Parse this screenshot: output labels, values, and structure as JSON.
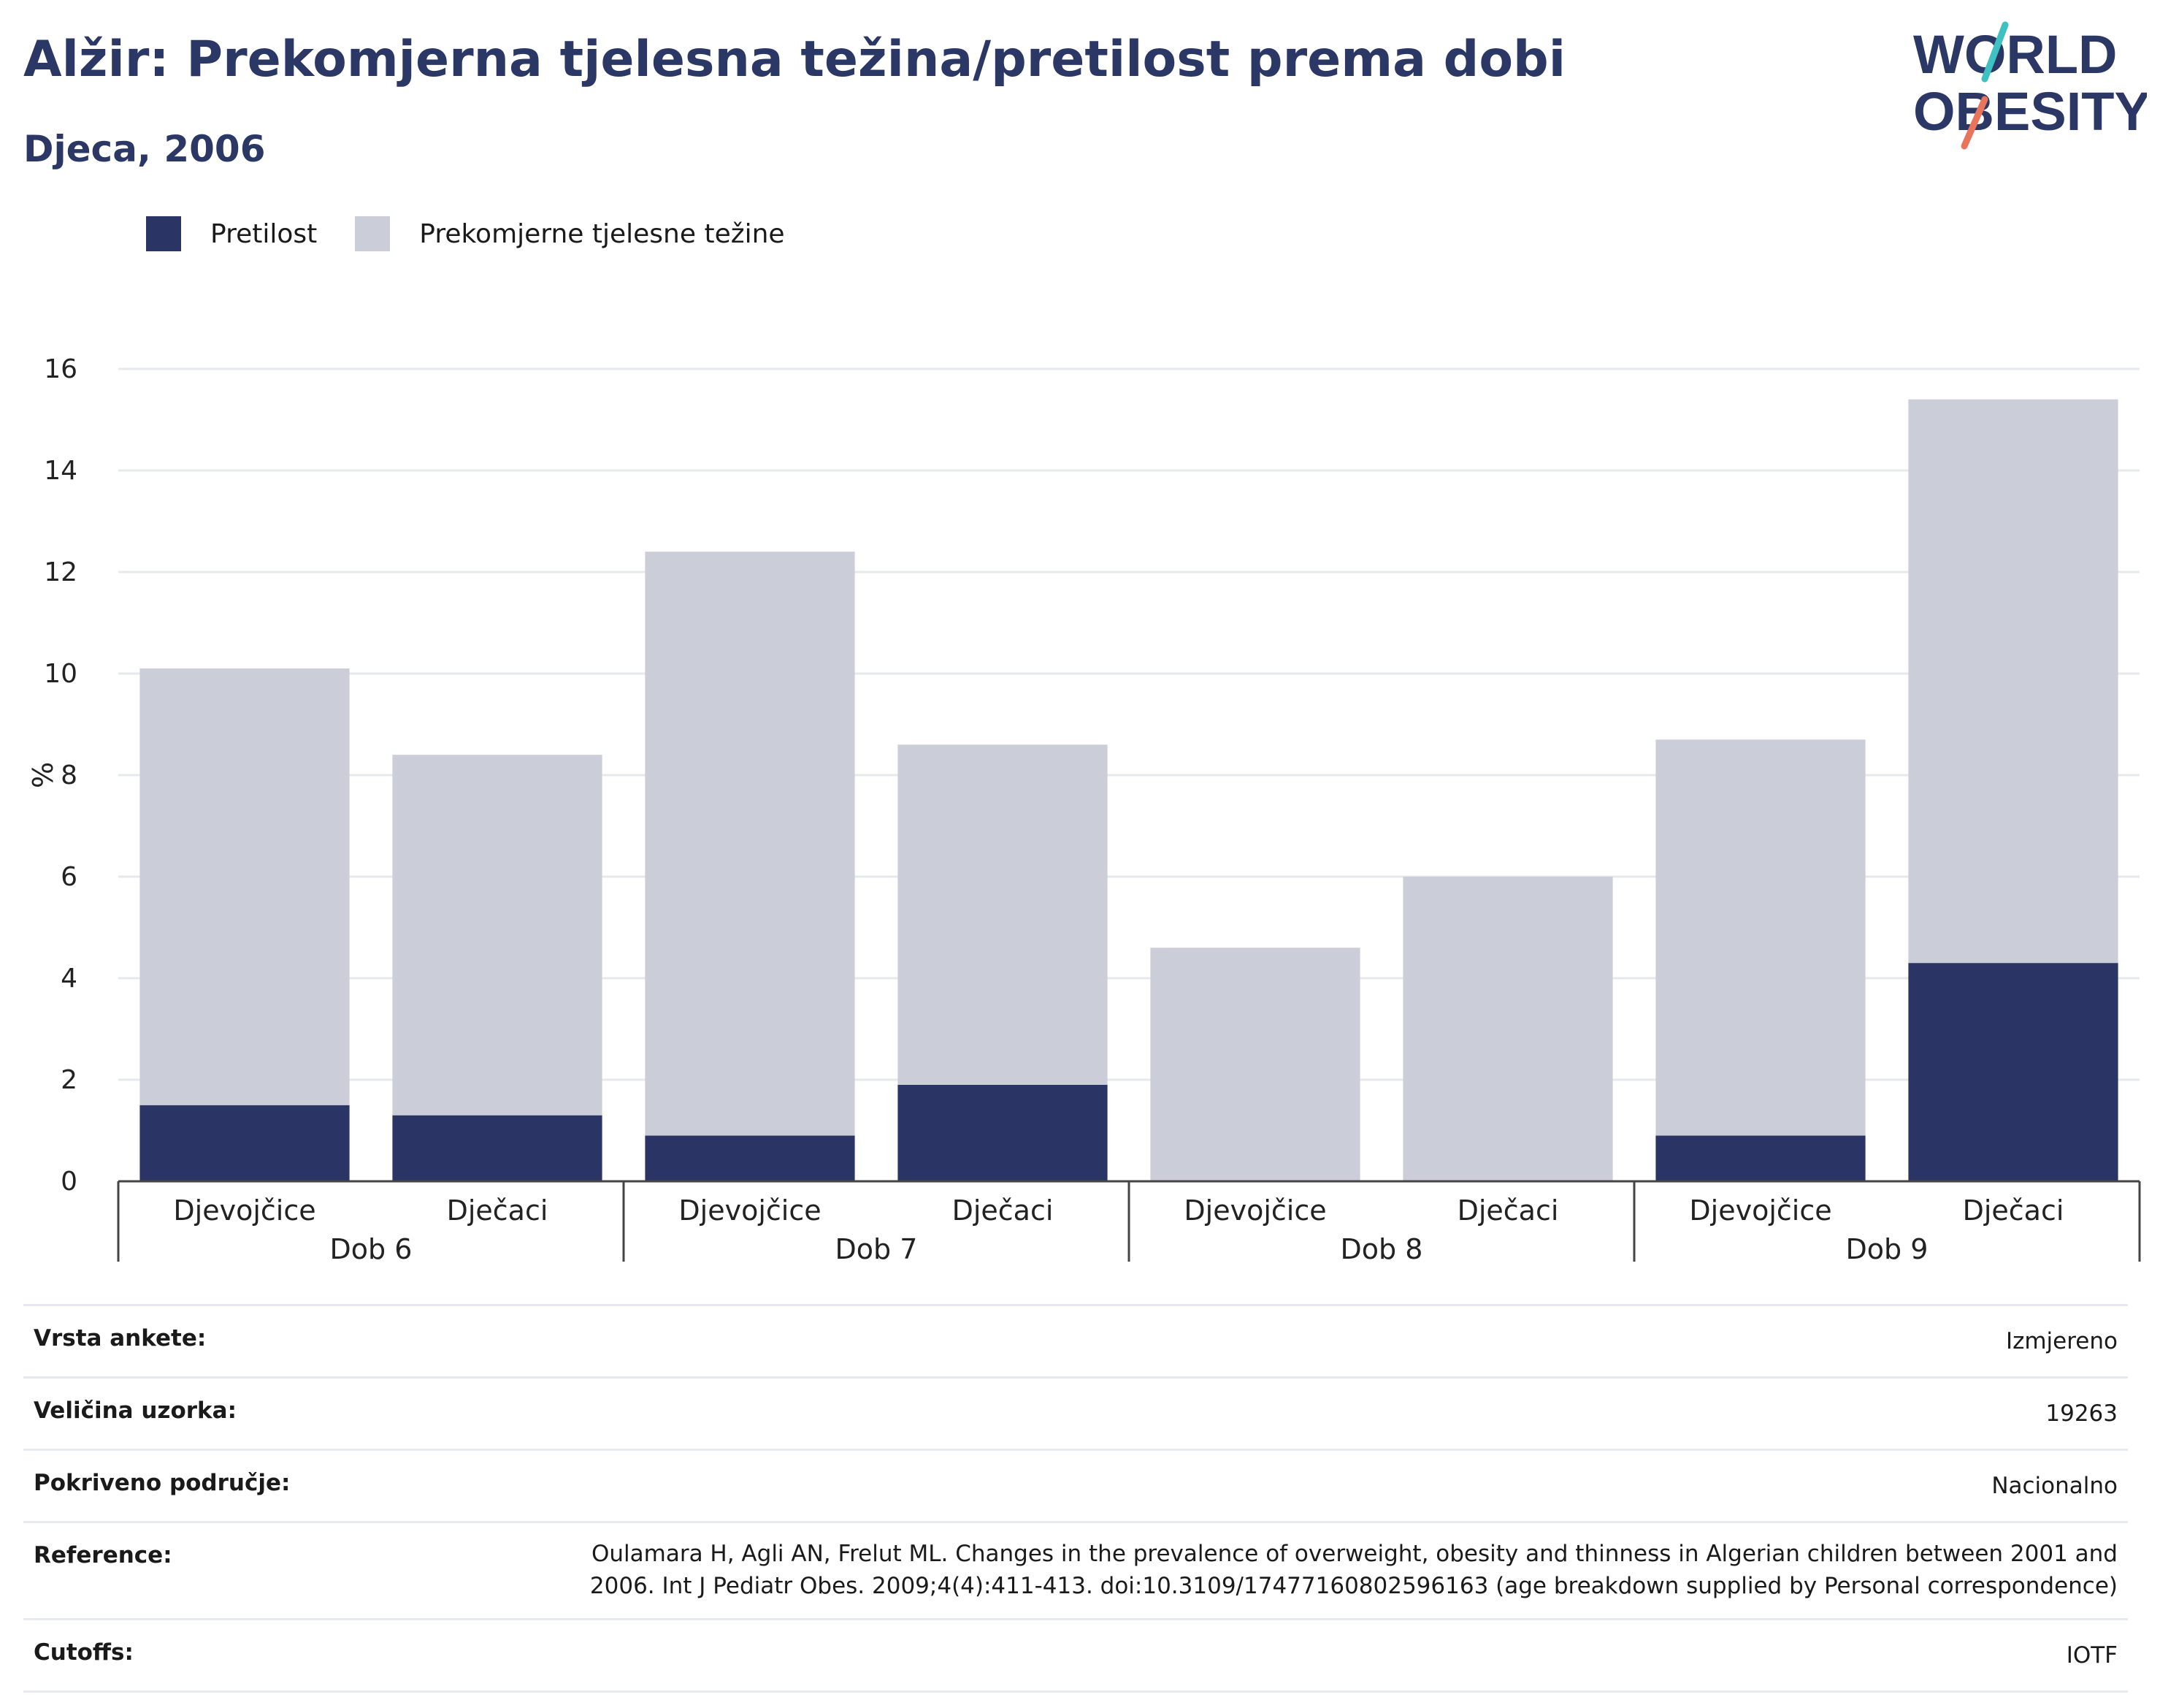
{
  "header": {
    "title": "Alžir: Prekomjerna tjelesna težina/pretilost prema dobi",
    "subtitle": "Djeca, 2006"
  },
  "logo": {
    "line1": "WORLD",
    "line2": "OBESITY",
    "slash_colors": [
      "#3ec1c0",
      "#e8745c"
    ]
  },
  "colors": {
    "obesity": "#2b3565",
    "overweight": "#cbcdd9",
    "text": "#2b3866"
  },
  "chart_data": {
    "type": "bar",
    "stacked": true,
    "ylabel": "%",
    "ylim": [
      0,
      16
    ],
    "yticks": [
      0,
      2,
      4,
      6,
      8,
      10,
      12,
      14,
      16
    ],
    "grid": true,
    "legend_position": "top-left",
    "groups": [
      "Dob 6",
      "Dob 7",
      "Dob 8",
      "Dob 9"
    ],
    "categories": [
      "Djevojčice",
      "Dječaci",
      "Djevojčice",
      "Dječaci",
      "Djevojčice",
      "Dječaci",
      "Djevojčice",
      "Dječaci"
    ],
    "series": [
      {
        "name": "Pretilost",
        "values": [
          1.5,
          1.3,
          0.9,
          1.9,
          0.0,
          0.0,
          0.9,
          4.3
        ]
      },
      {
        "name": "Prekomjerne tjelesne težine",
        "values": [
          8.6,
          7.1,
          11.5,
          6.7,
          4.6,
          6.0,
          7.8,
          11.1
        ]
      }
    ]
  },
  "info_table": [
    {
      "key": "Vrsta ankete:",
      "value": "Izmjereno"
    },
    {
      "key": "Veličina uzorka:",
      "value": "19263"
    },
    {
      "key": "Pokriveno područje:",
      "value": "Nacionalno"
    },
    {
      "key": "Reference:",
      "value": "Oulamara H, Agli AN, Frelut ML. Changes in the prevalence of overweight, obesity and thinness in Algerian children between 2001 and 2006. Int J Pediatr Obes. 2009;4(4):411-413. doi:10.3109/17477160802596163 (age breakdown supplied by Personal correspondence)"
    },
    {
      "key": "Cutoffs:",
      "value": "IOTF"
    }
  ]
}
